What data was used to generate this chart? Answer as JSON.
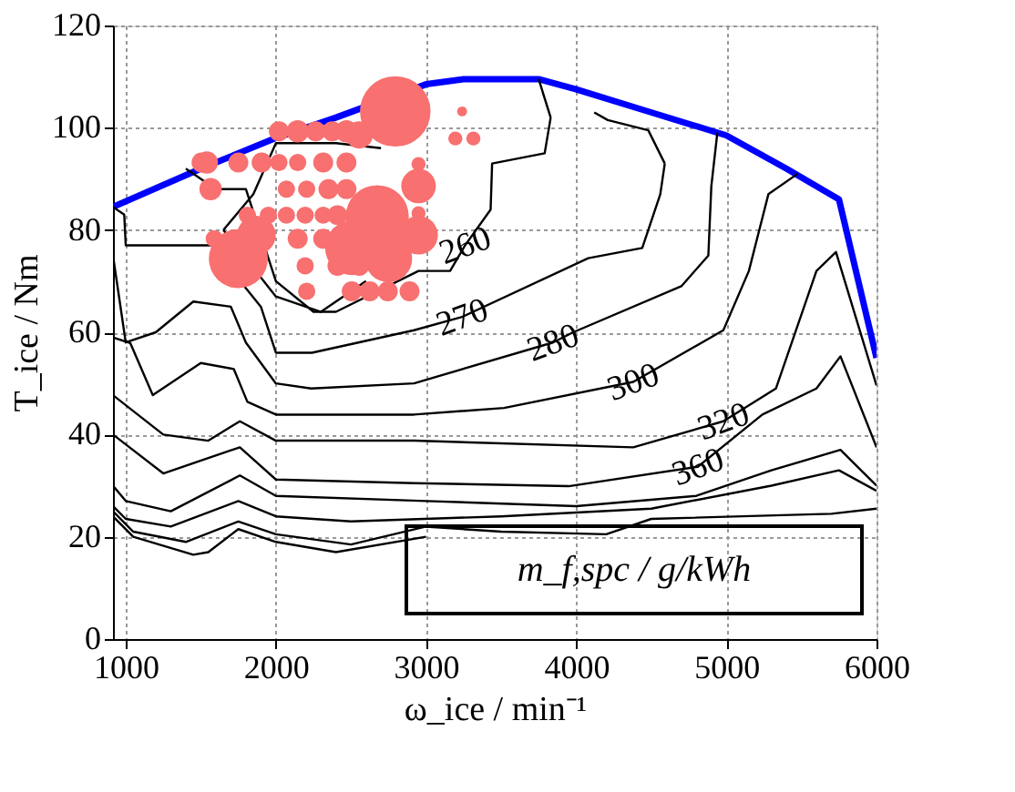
{
  "chart_data": {
    "type": "bubble",
    "xlabel": "ω_ice / min⁻¹",
    "ylabel": "T_ice / Nm",
    "xlim": [
      915,
      6000
    ],
    "xticks": [
      1000,
      2000,
      3000,
      4000,
      5000,
      6000
    ],
    "ylim": [
      0,
      120
    ],
    "yticks": [
      0,
      20,
      40,
      60,
      80,
      100,
      120
    ],
    "grid": true,
    "series": [
      {
        "type": "line",
        "color": "#0000ff",
        "x": [
          915,
          1500,
          2000,
          2400,
          3000,
          3250,
          3750,
          4000,
          4500,
          5000,
          5400,
          5750,
          6000
        ],
        "values": [
          84.5,
          92,
          98,
          102,
          108.5,
          109.5,
          109.5,
          107.5,
          103,
          98.5,
          92,
          86,
          55
        ]
      },
      {
        "type": "line",
        "color": "#000000",
        "x": [
          1650,
          1850,
          2000,
          2400,
          2700
        ],
        "values": [
          80,
          87,
          97,
          97,
          96
        ]
      },
      {
        "type": "line",
        "color": "#000000",
        "x": [
          1650,
          2000,
          2300,
          2600
        ],
        "values": [
          80,
          67,
          64,
          70
        ]
      },
      {
        "type": "line",
        "color": "#000000",
        "x": [
          3750,
          3830
        ],
        "values": [
          109.5,
          102
        ]
      },
      {
        "type": "line",
        "color": "#000000",
        "x": [
          1400,
          1600,
          1800,
          2000,
          2250,
          2400,
          2950,
          3160,
          3260,
          3430,
          3440,
          3790,
          3830
        ],
        "values": [
          92,
          88,
          88,
          70,
          64,
          64,
          72,
          72,
          77,
          84,
          93,
          95,
          102
        ]
      },
      {
        "type": "line",
        "color": "#000000",
        "x": [
          4120,
          4210,
          4480,
          4590
        ],
        "values": [
          103,
          101.5,
          99.5,
          93
        ]
      },
      {
        "type": "line",
        "color": "#000000",
        "x": [
          915,
          990,
          1000,
          1570,
          1900,
          2000,
          2240,
          2920,
          3240,
          4080,
          4440,
          4560,
          4590
        ],
        "values": [
          84.5,
          83,
          77,
          77,
          65,
          56,
          56,
          60.4,
          63,
          74.5,
          76.5,
          87,
          93
        ]
      },
      {
        "type": "line",
        "color": "#000000",
        "x": [
          915,
          1000,
          1200,
          1450,
          1700,
          1800,
          2000,
          2235,
          2920,
          3845,
          3980,
          4700,
          4880,
          4900,
          4940
        ],
        "values": [
          75,
          58,
          60,
          66,
          65,
          58,
          50,
          49,
          50,
          58,
          60,
          69,
          75,
          88.6,
          99
        ]
      },
      {
        "type": "line",
        "color": "#000000",
        "x": [
          915,
          1030,
          1180,
          1500,
          1720,
          1810,
          2000,
          2920,
          3520,
          4380,
          4980,
          5150,
          5280,
          5475
        ],
        "values": [
          59,
          57.9,
          47.7,
          54,
          52.8,
          46.4,
          43.9,
          43.9,
          45.2,
          50.3,
          60.4,
          72,
          87,
          91
        ]
      },
      {
        "type": "line",
        "color": "#000000",
        "x": [
          915,
          1250,
          1550,
          1760,
          2000,
          2920,
          4380,
          4980,
          5330,
          5600,
          5730,
          6000
        ],
        "values": [
          47.7,
          40,
          38.8,
          42.6,
          38.8,
          38.8,
          37.5,
          42.6,
          49,
          72,
          75.7,
          49.6
        ]
      },
      {
        "type": "line",
        "color": "#000000",
        "x": [
          915,
          1250,
          1760,
          2000,
          2920,
          3950,
          4810,
          5240,
          5600,
          5760,
          6000
        ],
        "values": [
          40,
          32.4,
          37.5,
          31.2,
          30.5,
          29.9,
          33.7,
          43.9,
          49,
          55.3,
          37.5
        ]
      },
      {
        "type": "line",
        "color": "#000000",
        "x": [
          915,
          1000,
          1300,
          1760,
          2000,
          3000,
          4000,
          4800,
          5300,
          5760,
          6000
        ],
        "values": [
          30,
          27,
          25,
          32,
          28,
          27,
          26,
          28,
          33,
          37,
          30
        ]
      },
      {
        "type": "line",
        "color": "#000000",
        "x": [
          915,
          1000,
          1300,
          1750,
          2000,
          2500,
          3500,
          4500,
          5300,
          5750,
          6000
        ],
        "values": [
          26,
          23.5,
          22,
          27,
          24,
          23,
          24,
          25.5,
          30,
          33,
          29
        ]
      },
      {
        "type": "line",
        "color": "#000000",
        "x": [
          915,
          1050,
          1400,
          1750,
          2000,
          2500,
          3000,
          3500,
          4200,
          4500,
          5700,
          6000
        ],
        "values": [
          25,
          21,
          19,
          23,
          20.5,
          18.5,
          22,
          21,
          20.5,
          23.5,
          24.5,
          25.5
        ]
      },
      {
        "type": "line",
        "color": "#000000",
        "x": [
          915,
          1050,
          1450,
          1550,
          1750,
          2000,
          2400,
          3000
        ],
        "values": [
          24,
          20,
          16.5,
          17,
          21.5,
          19,
          17,
          20
        ]
      },
      {
        "color": "#f87070",
        "x": [
          2795,
          1540,
          1565,
          1750,
          2950,
          2950,
          2675,
          2510,
          2750,
          1870,
          2020,
          2145,
          2265,
          2375,
          2470,
          1505,
          1750,
          1905,
          2020,
          2145,
          2315,
          2470,
          2070,
          2205,
          2350,
          2470,
          1810,
          1950,
          2070,
          2195,
          2315,
          2410,
          1590,
          2145,
          2315,
          2195,
          2410,
          2555,
          2205,
          2505,
          2625,
          2745,
          2890,
          3240,
          3195,
          3315,
          2950,
          2950,
          2555
        ],
        "values": [
          103.2,
          93.2,
          88,
          74.4,
          88.6,
          79,
          82.6,
          76.5,
          74.4,
          79,
          99.3,
          99.3,
          99.3,
          99.3,
          99.3,
          93.2,
          93.2,
          93.2,
          93.2,
          93.2,
          93.2,
          93.2,
          88,
          88,
          88,
          88,
          82.9,
          82.9,
          82.9,
          82.9,
          82.9,
          82.9,
          78.3,
          78.3,
          78.3,
          73,
          73,
          73,
          68,
          68,
          68,
          68,
          68,
          103.2,
          97.9,
          97.9,
          92.9,
          83.3,
          98.6
        ],
        "sizes": [
          1,
          0.1,
          0.1,
          0.7,
          0.24,
          0.3,
          0.8,
          0.6,
          0.45,
          0.3,
          0.08,
          0.1,
          0.08,
          0.08,
          0.1,
          0.08,
          0.08,
          0.08,
          0.06,
          0.06,
          0.08,
          0.08,
          0.06,
          0.06,
          0.08,
          0.08,
          0.06,
          0.06,
          0.06,
          0.06,
          0.06,
          0.08,
          0.06,
          0.08,
          0.08,
          0.06,
          0.08,
          0.08,
          0.06,
          0.08,
          0.08,
          0.08,
          0.08,
          0.02,
          0.04,
          0.04,
          0.04,
          0.04,
          0.15
        ]
      }
    ],
    "annotations": [
      {
        "text": "260",
        "x": 3260,
        "y": 77
      },
      {
        "text": "270",
        "x": 3240,
        "y": 63
      },
      {
        "text": "280",
        "x": 3845,
        "y": 58
      },
      {
        "text": "300",
        "x": 4380,
        "y": 50.3
      },
      {
        "text": "320",
        "x": 4980,
        "y": 42.6
      },
      {
        "text": "360",
        "x": 4810,
        "y": 33.7
      },
      "m_f,spc / g/kWh"
    ]
  }
}
